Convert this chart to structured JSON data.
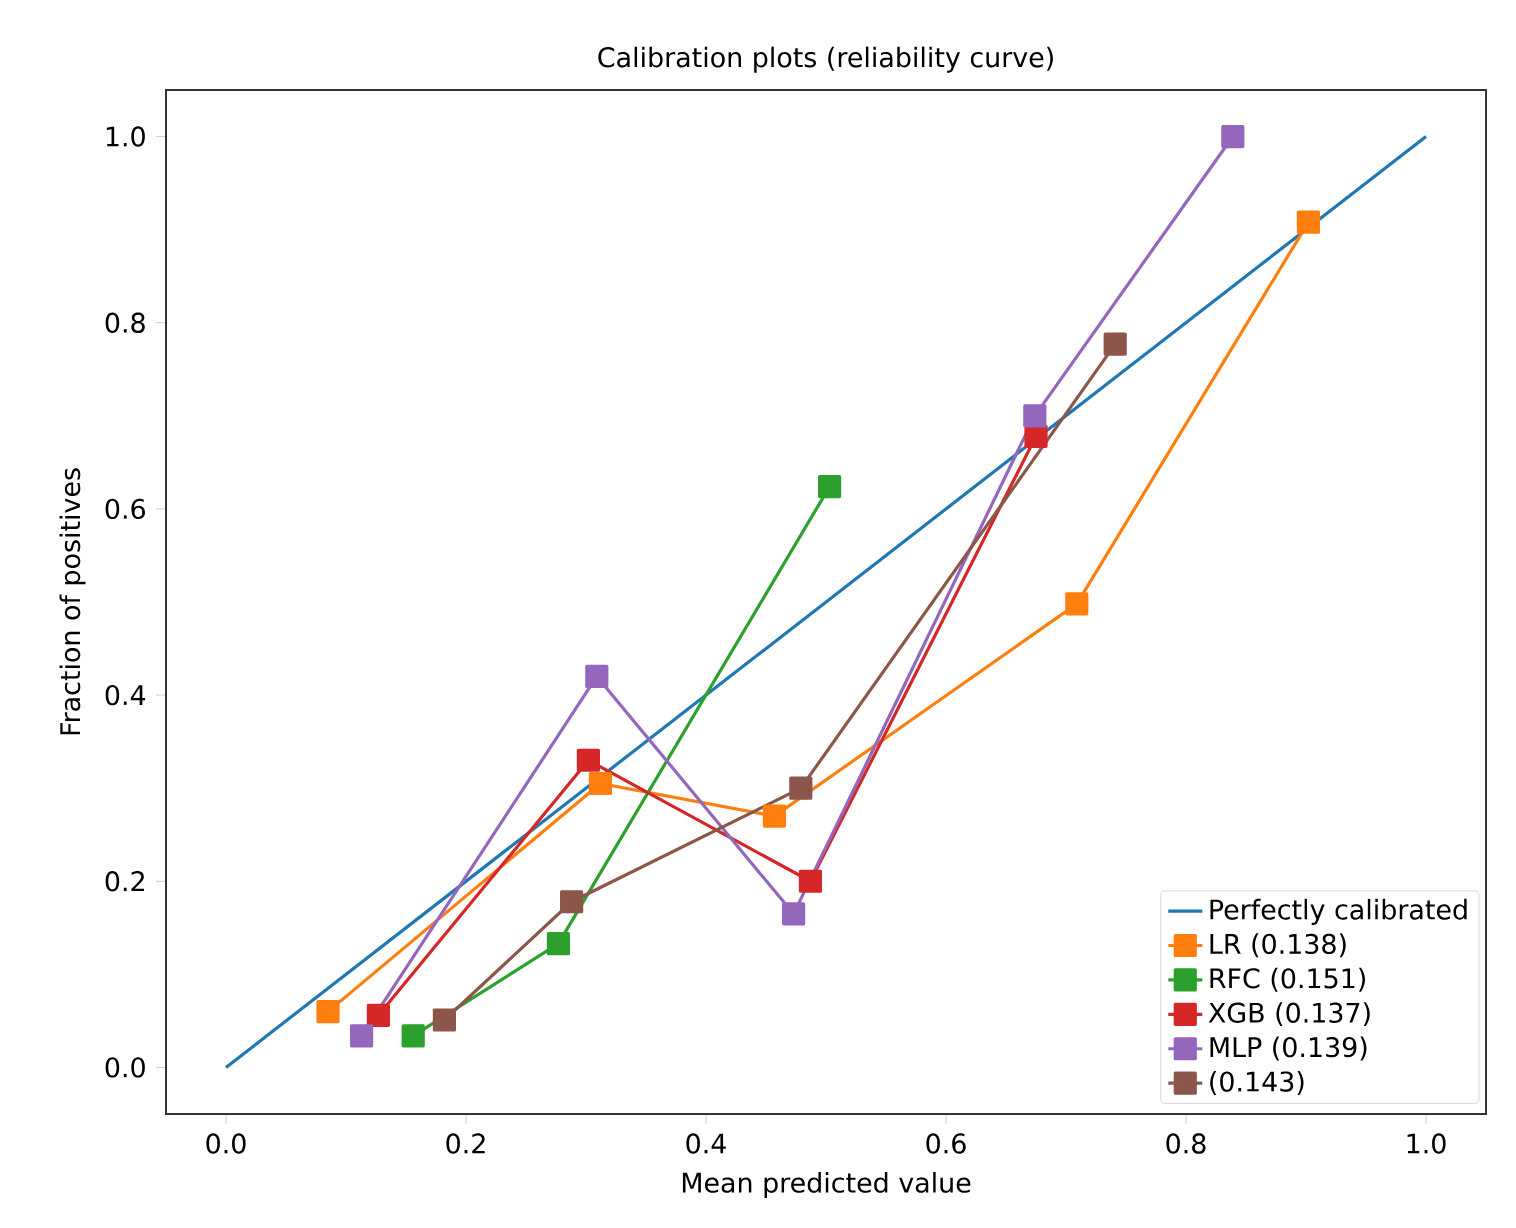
{
  "chart_data": {
    "type": "line",
    "title": "Calibration plots (reliability curve)",
    "xlabel": "Mean predicted value",
    "ylabel": "Fraction of positives",
    "xlim": [
      -0.05,
      1.05
    ],
    "ylim": [
      -0.05,
      1.05
    ],
    "xticks": [
      {
        "value": 0,
        "label": "0.0"
      },
      0.2,
      0.4,
      0.6,
      0.8,
      {
        "value": 1,
        "label": "1.0"
      }
    ],
    "yticks": [
      {
        "value": 0,
        "label": "0.0"
      },
      0.2,
      0.4,
      0.6,
      0.8,
      {
        "value": 1,
        "label": "1.0"
      }
    ],
    "legend": "bottom right",
    "marker": "square",
    "line_style": "solid",
    "series": [
      {
        "name": "Perfectly calibrated",
        "color": "#1f77b4",
        "marker": "none",
        "x": [
          0,
          1
        ],
        "values": [
          0,
          1
        ]
      },
      {
        "name": "LR (0.138)",
        "color": "#ff7f0e",
        "x": [
          0.085,
          0.312,
          0.457,
          0.709,
          0.902
        ],
        "values": [
          0.06,
          0.305,
          0.27,
          0.498,
          0.908
        ]
      },
      {
        "name": "RFC (0.151)",
        "color": "#2ca02c",
        "x": [
          0.156,
          0.277,
          0.503
        ],
        "values": [
          0.034,
          0.133,
          0.624
        ]
      },
      {
        "name": "XGB (0.137)",
        "color": "#d62728",
        "x": [
          0.127,
          0.302,
          0.487,
          0.675
        ],
        "values": [
          0.056,
          0.33,
          0.2,
          0.678
        ]
      },
      {
        "name": "MLP (0.139)",
        "color": "#9467bd",
        "x": [
          0.113,
          0.309,
          0.473,
          0.674,
          0.839
        ],
        "values": [
          0.034,
          0.42,
          0.165,
          0.7,
          1.0
        ]
      },
      {
        "name": "(0.143)",
        "color": "#8c564b",
        "x": [
          0.182,
          0.288,
          0.479,
          0.741
        ],
        "values": [
          0.051,
          0.178,
          0.3,
          0.777
        ]
      }
    ]
  }
}
